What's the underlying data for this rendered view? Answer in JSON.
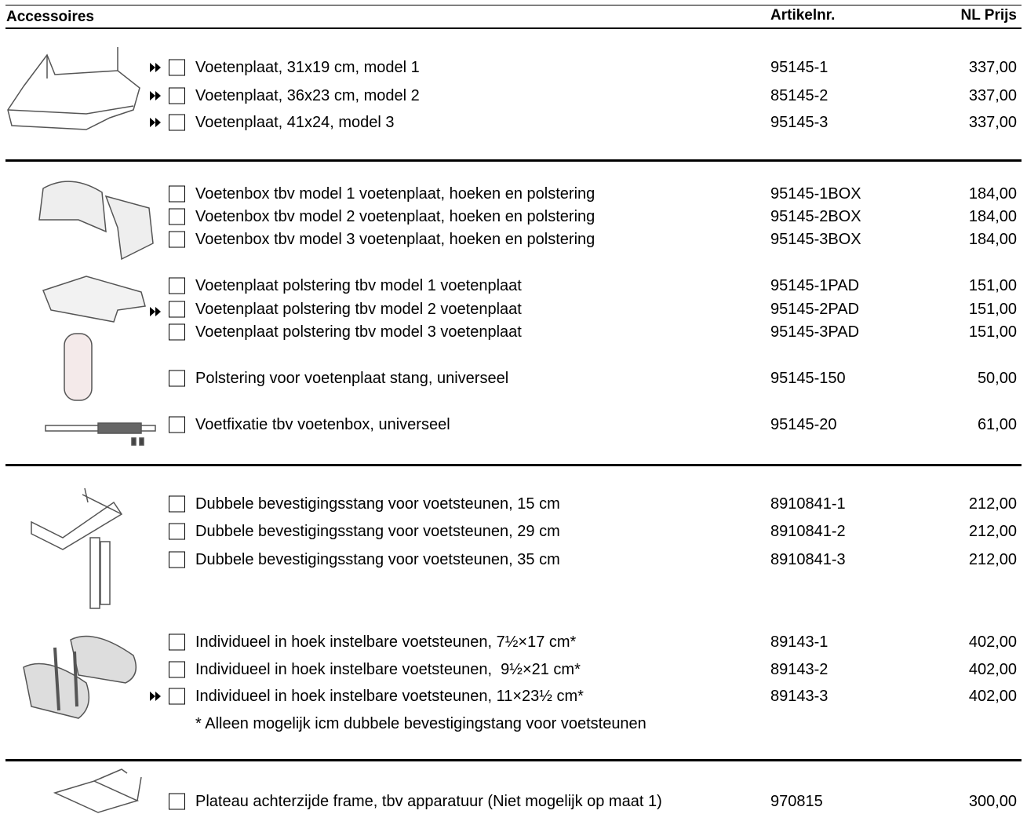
{
  "header": {
    "title": "Accessoires",
    "article_heading": "Artikelnr.",
    "price_heading": "NL Prijs"
  },
  "sections": [
    {
      "rows": [
        {
          "description": "Voetenplaat, 31x19 cm, model 1",
          "article": "95145-1",
          "price": "337,00"
        },
        {
          "description": "Voetenplaat, 36x23 cm, model 2",
          "article": "85145-2",
          "price": "337,00"
        },
        {
          "description": "Voetenplaat, 41x24, model 3",
          "article": "95145-3",
          "price": "337,00"
        }
      ]
    },
    {
      "rows": [
        {
          "description": "Voetenbox tbv model 1 voetenplaat, hoeken en polstering",
          "article": "95145-1BOX",
          "price": "184,00"
        },
        {
          "description": "Voetenbox tbv model 2 voetenplaat, hoeken en polstering",
          "article": "95145-2BOX",
          "price": "184,00"
        },
        {
          "description": "Voetenbox tbv model 3 voetenplaat, hoeken en polstering",
          "article": "95145-3BOX",
          "price": "184,00"
        },
        {
          "description": "Voetenplaat polstering tbv model 1 voetenplaat",
          "article": "95145-1PAD",
          "price": "151,00"
        },
        {
          "description": "Voetenplaat polstering tbv model 2 voetenplaat",
          "article": "95145-2PAD",
          "price": "151,00"
        },
        {
          "description": "Voetenplaat polstering tbv model 3 voetenplaat",
          "article": "95145-3PAD",
          "price": "151,00"
        },
        {
          "description": "Polstering voor voetenplaat stang, universeel",
          "article": "95145-150",
          "price": "50,00"
        },
        {
          "description": "Voetfixatie tbv voetenbox, universeel",
          "article": "95145-20",
          "price": "61,00"
        }
      ]
    },
    {
      "rows": [
        {
          "description": "Dubbele bevestigingsstang voor voetsteunen, 15 cm",
          "article": "8910841-1",
          "price": "212,00"
        },
        {
          "description": "Dubbele bevestigingsstang voor voetsteunen, 29 cm",
          "article": "8910841-2",
          "price": "212,00"
        },
        {
          "description": "Dubbele bevestigingsstang voor voetsteunen, 35 cm",
          "article": "8910841-3",
          "price": "212,00"
        },
        {
          "description": "Individueel in hoek instelbare voetsteunen, 7½×17 cm*",
          "article": "89143-1",
          "price": "402,00"
        },
        {
          "description": "Individueel in hoek instelbare voetsteunen,  9½×21 cm*",
          "article": "89143-2",
          "price": "402,00"
        },
        {
          "description": "Individueel in hoek instelbare voetsteunen, 11×23½ cm*",
          "article": "89143-3",
          "price": "402,00"
        }
      ],
      "note": "* Alleen mogelijk icm dubbele bevestigingstang voor voetsteunen"
    },
    {
      "rows": [
        {
          "description": "Plateau achterzijde frame, tbv apparatuur (Niet mogelijk op maat 1)",
          "article": "970815",
          "price": "300,00"
        }
      ]
    }
  ]
}
